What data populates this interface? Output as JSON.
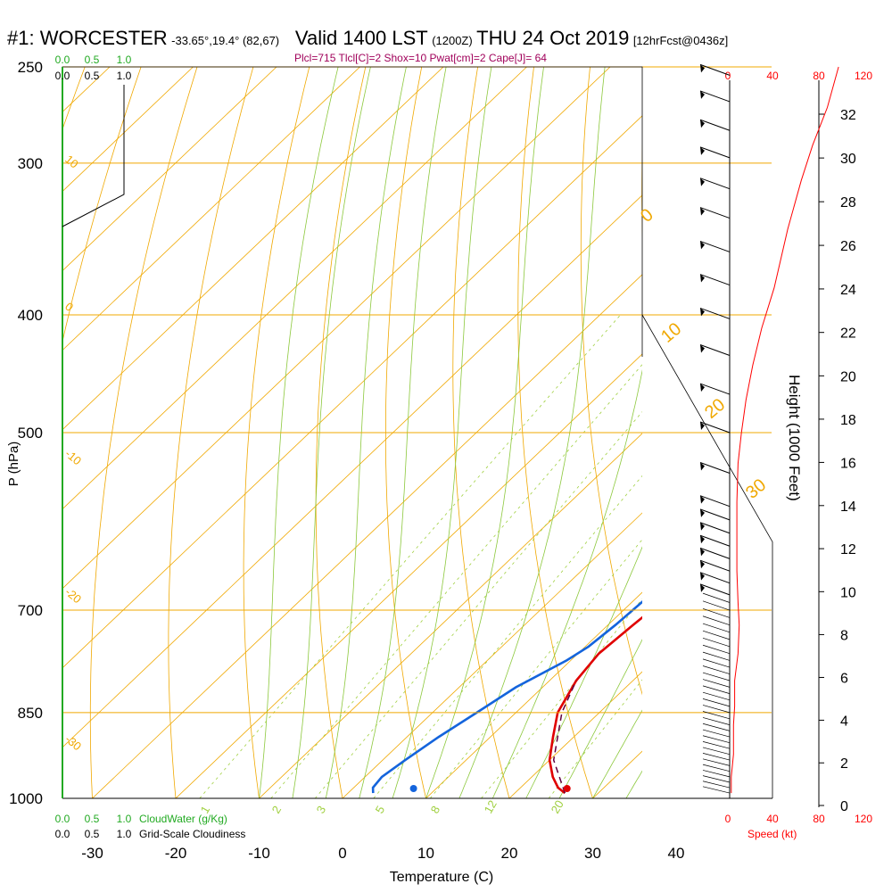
{
  "header": {
    "station": "#1: WORCESTER",
    "coords": "-33.65°,19.4° (82,67)",
    "valid": "Valid 1400 LST",
    "utc": "(1200Z)",
    "date": "THU 24 Oct 2019",
    "forecast": "[12hrFcst@0436z]",
    "params": "Plcl=715 Tlcl[C]=2 Shox=10 Pwat[cm]=2 Cape[J]= 64"
  },
  "colors": {
    "temperature": "#e00000",
    "dewpoint": "#1464dc",
    "isobar_isotherm": "#f0a800",
    "dry_adiabat": "#8cc83c",
    "mixing_ratio": "#a0d040",
    "parcel": "#600040",
    "cloud_scale": "#22aa22",
    "speed": "#ff0000",
    "params": "#a0005a"
  },
  "chart_data": {
    "type": "line",
    "xlabel": "Temperature (C)",
    "ylabel": "P (hPa)",
    "x_ticks": [
      "-30",
      "-20",
      "-10",
      "0",
      "10",
      "20",
      "30",
      "40"
    ],
    "x_tick_values": [
      -30,
      -20,
      -10,
      0,
      10,
      20,
      30,
      40
    ],
    "pressure_ticks": [
      "250",
      "300",
      "400",
      "500",
      "700",
      "850",
      "1000"
    ],
    "pressure_values": [
      250,
      300,
      400,
      500,
      700,
      850,
      1000
    ],
    "height_axis": {
      "label": "Height (1000 Feet)",
      "ticks": [
        "0",
        "2",
        "4",
        "6",
        "8",
        "10",
        "12",
        "14",
        "16",
        "18",
        "20",
        "22",
        "24",
        "26",
        "28",
        "30",
        "32"
      ]
    },
    "speed_axis": {
      "label": "Speed (kt)",
      "ticks": [
        "0",
        "40",
        "80",
        "120"
      ]
    },
    "cloud_axis": {
      "top_green": [
        "0.0",
        "0.5",
        "1.0"
      ],
      "top_black": [
        "0.0",
        "0.5",
        "1.0"
      ],
      "bottom_green": [
        "0.0",
        "0.5",
        "1.0"
      ],
      "bottom_black": [
        "0.0",
        "0.5",
        "1.0"
      ],
      "green_label": "CloudWater (g/Kg)",
      "black_label": "Grid-Scale Cloudiness"
    },
    "theta_labels": [
      "0",
      "10",
      "20",
      "30"
    ],
    "left_iso_labels": [
      "10",
      "0",
      "-10",
      "-20",
      "-30"
    ],
    "mixing_ratio_labels": [
      "1",
      "2",
      "3",
      "5",
      "8",
      "12",
      "20"
    ],
    "series": [
      {
        "name": "Temperature",
        "points": [
          [
            26.0,
            990
          ],
          [
            24.5,
            980
          ],
          [
            22.5,
            960
          ],
          [
            20.0,
            930
          ],
          [
            17.5,
            890
          ],
          [
            15.0,
            850
          ],
          [
            13.2,
            800
          ],
          [
            12.5,
            760
          ],
          [
            13.0,
            720
          ],
          [
            13.5,
            690
          ],
          [
            13.5,
            650
          ],
          [
            13.3,
            610
          ],
          [
            12.8,
            570
          ],
          [
            11.8,
            530
          ],
          [
            10.6,
            500
          ],
          [
            9.0,
            470
          ],
          [
            7.2,
            440
          ],
          [
            5.3,
            410
          ],
          [
            4.2,
            390
          ],
          [
            3.2,
            370
          ],
          [
            2.5,
            350
          ],
          [
            2.0,
            330
          ],
          [
            1.2,
            310
          ],
          [
            0.2,
            295
          ],
          [
            -0.8,
            280
          ],
          [
            -2.2,
            260
          ]
        ]
      },
      {
        "name": "Dewpoint",
        "points": [
          [
            3.0,
            990
          ],
          [
            2.3,
            980
          ],
          [
            2.0,
            960
          ],
          [
            2.7,
            930
          ],
          [
            3.8,
            890
          ],
          [
            5.3,
            850
          ],
          [
            6.8,
            810
          ],
          [
            9.5,
            770
          ],
          [
            10.4,
            750
          ],
          [
            10.9,
            720
          ],
          [
            11.2,
            690
          ],
          [
            11.3,
            650
          ],
          [
            10.9,
            610
          ],
          [
            10.2,
            570
          ],
          [
            9.0,
            530
          ],
          [
            7.5,
            500
          ],
          [
            6.0,
            470
          ],
          [
            4.5,
            440
          ],
          [
            2.5,
            410
          ],
          [
            1.6,
            390
          ],
          [
            0.8,
            370
          ],
          [
            1.0,
            350
          ],
          [
            1.2,
            330
          ],
          [
            0.8,
            320
          ],
          [
            -0.2,
            300
          ],
          [
            -2.0,
            275
          ],
          [
            -4.1,
            255
          ]
        ]
      },
      {
        "name": "Parcel",
        "points": [
          [
            26.0,
            990
          ],
          [
            20.5,
            930
          ],
          [
            15.5,
            850
          ],
          [
            13.2,
            800
          ]
        ]
      }
    ],
    "surface_markers": {
      "temperature": [
        26.6,
        990
      ],
      "dewpoint": [
        8.3,
        985
      ]
    },
    "height_profile_speed_kt": [
      [
        3,
        990
      ],
      [
        3,
        960
      ],
      [
        5,
        920
      ],
      [
        5,
        870
      ],
      [
        6,
        840
      ],
      [
        6,
        800
      ],
      [
        9,
        760
      ],
      [
        10,
        720
      ],
      [
        9,
        690
      ],
      [
        8,
        650
      ],
      [
        8,
        610
      ],
      [
        8,
        570
      ],
      [
        9,
        530
      ],
      [
        12,
        500
      ],
      [
        16,
        470
      ],
      [
        22,
        440
      ],
      [
        30,
        410
      ],
      [
        41,
        380
      ],
      [
        53,
        340
      ],
      [
        65,
        310
      ],
      [
        75,
        290
      ],
      [
        88,
        270
      ],
      [
        98,
        250
      ]
    ],
    "wind_barb_pressures": [
      254,
      267,
      282,
      297,
      315,
      333,
      355,
      378,
      403,
      432,
      465,
      500,
      540,
      575,
      590,
      605,
      620,
      635,
      650,
      665,
      680
    ]
  }
}
